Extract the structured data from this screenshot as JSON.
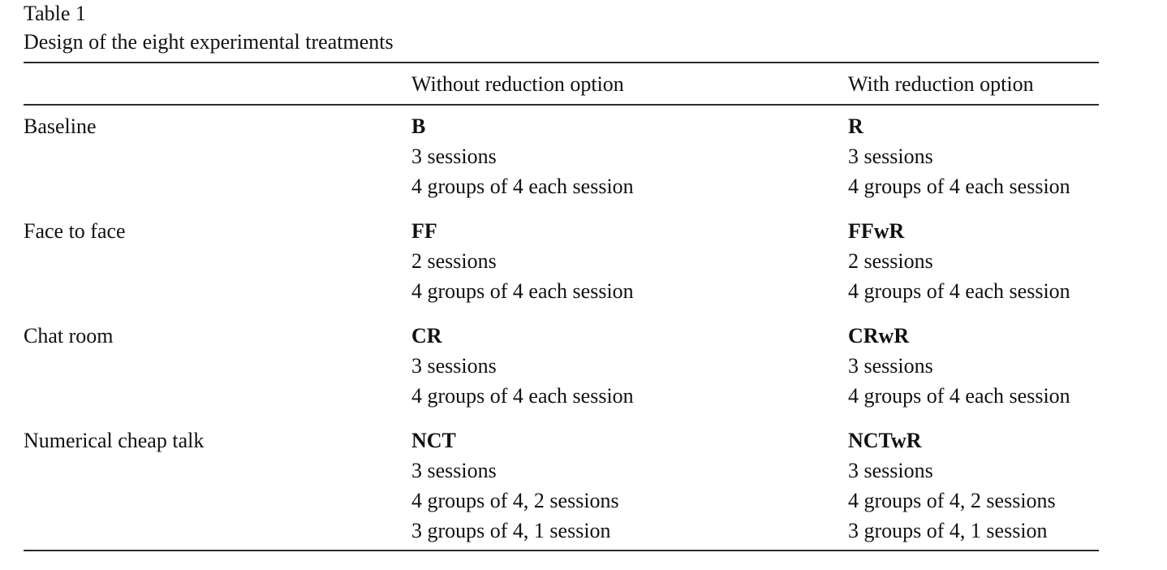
{
  "table": {
    "label": "Table 1",
    "caption": "Design of the eight experimental treatments",
    "columns": [
      "",
      "Without reduction option",
      "With reduction option"
    ],
    "rows": [
      {
        "label": "Baseline",
        "without": {
          "code": "B",
          "lines": [
            "3 sessions",
            "4 groups of 4 each session"
          ]
        },
        "with": {
          "code": "R",
          "lines": [
            "3 sessions",
            "4 groups of 4 each session"
          ]
        }
      },
      {
        "label": "Face to face",
        "without": {
          "code": "FF",
          "lines": [
            "2 sessions",
            "4 groups of 4 each session"
          ]
        },
        "with": {
          "code": "FFwR",
          "lines": [
            "2 sessions",
            "4 groups of 4 each session"
          ]
        }
      },
      {
        "label": "Chat room",
        "without": {
          "code": "CR",
          "lines": [
            "3 sessions",
            "4 groups of 4 each session"
          ]
        },
        "with": {
          "code": "CRwR",
          "lines": [
            "3 sessions",
            "4 groups of 4 each session"
          ]
        }
      },
      {
        "label": "Numerical cheap talk",
        "without": {
          "code": "NCT",
          "lines": [
            "3 sessions",
            "4 groups of 4, 2 sessions",
            "3 groups of 4, 1 session"
          ]
        },
        "with": {
          "code": "NCTwR",
          "lines": [
            "3 sessions",
            "4 groups of 4, 2 sessions",
            "3 groups of 4, 1 session"
          ]
        }
      }
    ]
  }
}
